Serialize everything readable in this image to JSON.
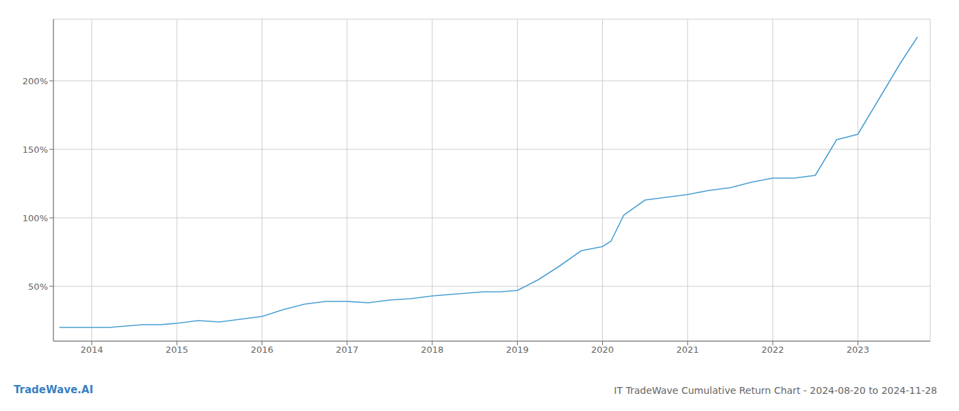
{
  "chart_data": {
    "type": "line",
    "title": "IT TradeWave Cumulative Return Chart - 2024-08-20 to 2024-11-28",
    "annotations": [
      {
        "text": "TradeWave.AI",
        "color": "#3a7fc1"
      }
    ],
    "color": "#4a9fd4",
    "x": [
      2013.62,
      2014.0,
      2014.2,
      2014.4,
      2014.6,
      2014.8,
      2015.0,
      2015.25,
      2015.5,
      2015.75,
      2016.0,
      2016.25,
      2016.5,
      2016.75,
      2017.0,
      2017.25,
      2017.5,
      2017.75,
      2018.0,
      2018.2,
      2018.4,
      2018.6,
      2018.8,
      2019.0,
      2019.25,
      2019.5,
      2019.75,
      2020.0,
      2020.1,
      2020.25,
      2020.5,
      2020.75,
      2021.0,
      2021.25,
      2021.5,
      2021.75,
      2022.0,
      2022.1,
      2022.25,
      2022.5,
      2022.75,
      2023.0,
      2023.25,
      2023.5,
      2023.7
    ],
    "values": [
      20,
      20,
      20,
      21,
      22,
      22,
      23,
      25,
      24,
      26,
      28,
      33,
      37,
      39,
      39,
      38,
      40,
      41,
      43,
      44,
      45,
      46,
      46,
      47,
      55,
      65,
      76,
      79,
      83,
      102,
      113,
      115,
      117,
      120,
      122,
      126,
      129,
      129,
      129,
      131,
      157,
      161,
      187,
      213,
      232
    ],
    "xlim": [
      2013.55,
      2023.85
    ],
    "xticks": [
      2014,
      2015,
      2016,
      2017,
      2018,
      2019,
      2020,
      2021,
      2022,
      2023
    ],
    "ylim": [
      10,
      245
    ],
    "yticks": [
      {
        "value": 50,
        "label": "50%"
      },
      {
        "value": 100,
        "label": "100%"
      },
      {
        "value": 150,
        "label": "150%"
      },
      {
        "value": 200,
        "label": "200%"
      }
    ],
    "grid": true
  }
}
